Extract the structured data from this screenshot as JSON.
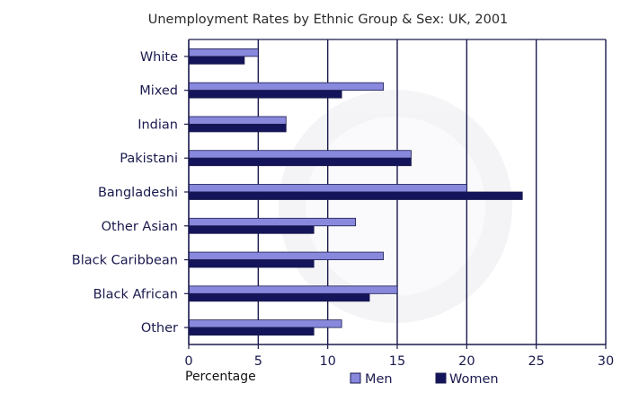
{
  "chart_data": {
    "type": "bar",
    "orientation": "horizontal",
    "title": "Unemployment Rates by Ethnic Group & Sex: UK, 2001",
    "xlabel": "Percentage",
    "ylabel": "",
    "xlim": [
      0,
      30
    ],
    "xticks": [
      0,
      5,
      10,
      15,
      20,
      25,
      30
    ],
    "grid": true,
    "legend_position": "bottom",
    "categories": [
      "White",
      "Mixed",
      "Indian",
      "Pakistani",
      "Bangladeshi",
      "Other Asian",
      "Black Caribbean",
      "Black African",
      "Other"
    ],
    "series": [
      {
        "name": "Men",
        "color": "#8888dd",
        "values": [
          5,
          14,
          7,
          16,
          20,
          12,
          14,
          15,
          11
        ]
      },
      {
        "name": "Women",
        "color": "#14145a",
        "values": [
          4,
          11,
          7,
          16,
          24,
          9,
          9,
          13,
          9
        ]
      }
    ]
  },
  "colors": {
    "axis": "#1a1a4e",
    "grid": "#1a1a4e"
  }
}
